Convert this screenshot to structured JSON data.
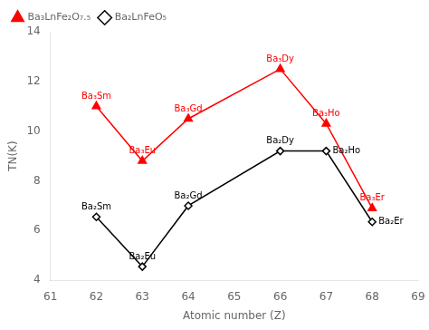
{
  "chart_data": {
    "type": "line",
    "x": [
      62,
      63,
      64,
      66,
      67,
      68
    ],
    "series": [
      {
        "name": "Ba₃LnFe₂O₇.₅",
        "color": "#ff0000",
        "marker": "triangle",
        "values": [
          11.0,
          8.8,
          10.5,
          12.5,
          10.3,
          6.9
        ]
      },
      {
        "name": "Ba₂LnFeO₅",
        "color": "#000000",
        "marker": "diamond",
        "values": [
          6.55,
          4.55,
          7.0,
          9.2,
          9.2,
          6.35
        ]
      }
    ],
    "annotations": [
      {
        "text": "Ba₃Sm",
        "x": 62,
        "y": 11.0,
        "color": "#ff0000"
      },
      {
        "text": "Ba₃Eu",
        "x": 63,
        "y": 8.8,
        "color": "#ff0000"
      },
      {
        "text": "Ba₃Gd",
        "x": 64,
        "y": 10.5,
        "color": "#ff0000"
      },
      {
        "text": "Ba₃Dy",
        "x": 66,
        "y": 12.5,
        "color": "#ff0000"
      },
      {
        "text": "Ba₃Ho",
        "x": 67,
        "y": 10.3,
        "color": "#ff0000"
      },
      {
        "text": "Ba₃Er",
        "x": 68,
        "y": 6.9,
        "color": "#ff0000"
      },
      {
        "text": "Ba₂Sm",
        "x": 62,
        "y": 6.55,
        "color": "#000000"
      },
      {
        "text": "Ba₂Eu",
        "x": 63,
        "y": 4.55,
        "color": "#000000"
      },
      {
        "text": "Ba₂Gd",
        "x": 64,
        "y": 7.0,
        "color": "#000000"
      },
      {
        "text": "Ba₂Dy",
        "x": 66,
        "y": 9.2,
        "color": "#000000"
      },
      {
        "text": "Ba₂Ho",
        "x": 67,
        "y": 9.2,
        "color": "#000000"
      },
      {
        "text": "Ba₂Er",
        "x": 68,
        "y": 6.35,
        "color": "#000000"
      }
    ],
    "xlabel": "Atomic number (Z)",
    "ylabel": "TN(K)",
    "xlim": [
      61,
      69
    ],
    "xticks": [
      61,
      62,
      63,
      64,
      65,
      66,
      67,
      68,
      69
    ],
    "ylim": [
      4,
      14
    ],
    "yticks": [
      4,
      6,
      8,
      10,
      12,
      14
    ],
    "grid": false,
    "legend": "upper left"
  }
}
